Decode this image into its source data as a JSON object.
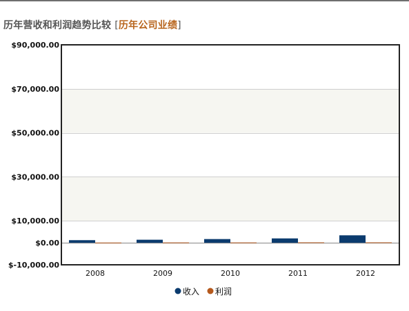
{
  "header": {
    "title": "历年营收和利润趋势比较",
    "bracket_open": "[",
    "link_label": "历年公司业绩",
    "bracket_close": "]"
  },
  "chart_data": {
    "type": "bar",
    "categories": [
      "2008",
      "2009",
      "2010",
      "2011",
      "2012"
    ],
    "series": [
      {
        "name": "收入",
        "values": [
          1200,
          1400,
          1700,
          2000,
          3400
        ],
        "color": "#0b3b6e"
      },
      {
        "name": "利润",
        "values": [
          100,
          150,
          150,
          200,
          200
        ],
        "color": "#b5591d"
      }
    ],
    "ylim": [
      -10000,
      90000
    ],
    "yticks": [
      {
        "value": 90000,
        "label": "$90,000.00"
      },
      {
        "value": 70000,
        "label": "$70,000.00"
      },
      {
        "value": 50000,
        "label": "$50,000.00"
      },
      {
        "value": 30000,
        "label": "$30,000.00"
      },
      {
        "value": 10000,
        "label": "$10,000.00"
      },
      {
        "value": 0,
        "label": "$0.00"
      },
      {
        "value": -10000,
        "label": "$-10,000.00"
      }
    ],
    "bands": [
      [
        50000,
        70000
      ],
      [
        10000,
        30000
      ]
    ],
    "band_color": "#f6f6f1",
    "grid": true,
    "legend_position": "bottom",
    "title": "",
    "xlabel": "",
    "ylabel": ""
  }
}
